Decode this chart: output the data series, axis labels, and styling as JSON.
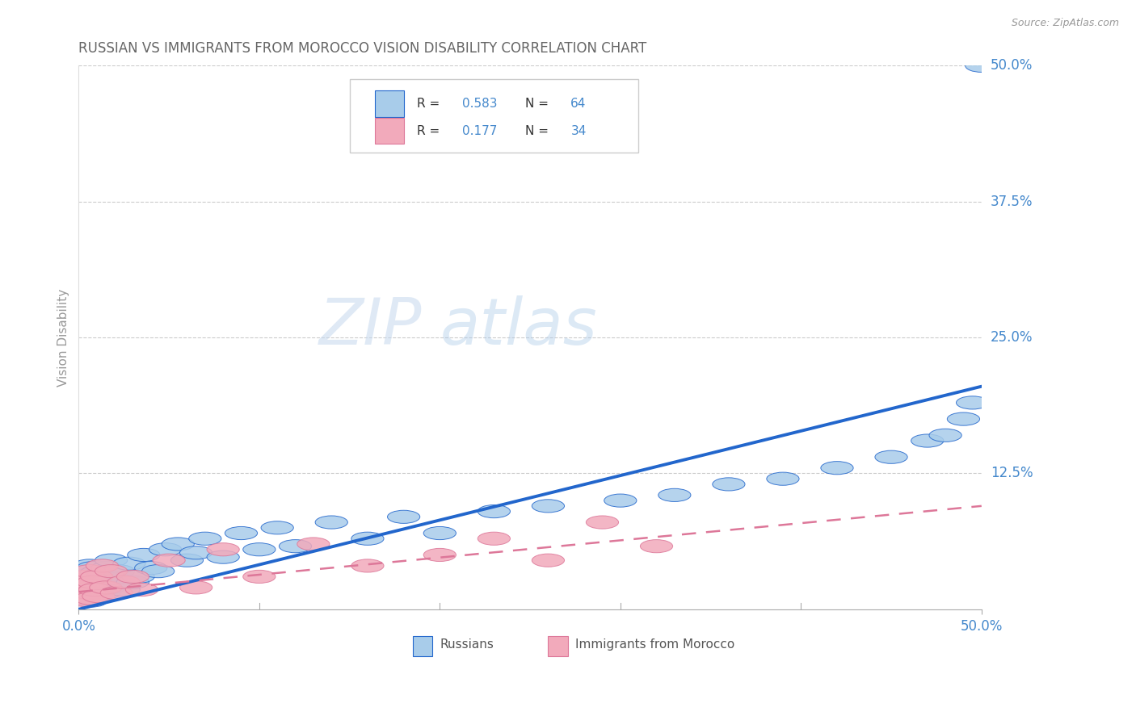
{
  "title": "RUSSIAN VS IMMIGRANTS FROM MOROCCO VISION DISABILITY CORRELATION CHART",
  "source": "Source: ZipAtlas.com",
  "ylabel": "Vision Disability",
  "xlim": [
    0.0,
    0.5
  ],
  "ylim": [
    0.0,
    0.5
  ],
  "ytick_labels": [
    "12.5%",
    "25.0%",
    "37.5%",
    "50.0%"
  ],
  "ytick_positions": [
    0.125,
    0.25,
    0.375,
    0.5
  ],
  "blue_color": "#A8CCEA",
  "pink_color": "#F2AABB",
  "blue_line_color": "#2266CC",
  "pink_line_color": "#DD7799",
  "grid_color": "#CCCCCC",
  "title_color": "#666666",
  "tick_label_color": "#4488CC",
  "source_color": "#999999",
  "ylabel_color": "#999999",
  "russians_x": [
    0.001,
    0.002,
    0.002,
    0.003,
    0.003,
    0.004,
    0.004,
    0.005,
    0.005,
    0.005,
    0.006,
    0.006,
    0.007,
    0.007,
    0.008,
    0.008,
    0.009,
    0.009,
    0.01,
    0.01,
    0.011,
    0.012,
    0.013,
    0.014,
    0.015,
    0.016,
    0.017,
    0.018,
    0.02,
    0.022,
    0.025,
    0.028,
    0.03,
    0.033,
    0.036,
    0.04,
    0.044,
    0.048,
    0.055,
    0.06,
    0.065,
    0.07,
    0.08,
    0.09,
    0.1,
    0.11,
    0.12,
    0.14,
    0.16,
    0.18,
    0.2,
    0.23,
    0.26,
    0.3,
    0.33,
    0.36,
    0.39,
    0.42,
    0.45,
    0.47,
    0.48,
    0.49,
    0.495,
    0.5
  ],
  "russians_y": [
    0.02,
    0.015,
    0.03,
    0.01,
    0.025,
    0.018,
    0.035,
    0.012,
    0.022,
    0.028,
    0.015,
    0.04,
    0.008,
    0.032,
    0.02,
    0.038,
    0.016,
    0.026,
    0.012,
    0.034,
    0.018,
    0.025,
    0.03,
    0.015,
    0.022,
    0.038,
    0.02,
    0.045,
    0.028,
    0.035,
    0.018,
    0.042,
    0.025,
    0.03,
    0.05,
    0.038,
    0.035,
    0.055,
    0.06,
    0.045,
    0.052,
    0.065,
    0.048,
    0.07,
    0.055,
    0.075,
    0.058,
    0.08,
    0.065,
    0.085,
    0.07,
    0.09,
    0.095,
    0.1,
    0.105,
    0.115,
    0.12,
    0.13,
    0.14,
    0.155,
    0.16,
    0.175,
    0.19,
    0.5
  ],
  "morocco_x": [
    0.001,
    0.002,
    0.002,
    0.003,
    0.003,
    0.004,
    0.004,
    0.005,
    0.005,
    0.006,
    0.006,
    0.007,
    0.008,
    0.009,
    0.01,
    0.011,
    0.013,
    0.015,
    0.018,
    0.021,
    0.025,
    0.03,
    0.035,
    0.05,
    0.065,
    0.08,
    0.1,
    0.13,
    0.16,
    0.2,
    0.23,
    0.26,
    0.29,
    0.32
  ],
  "morocco_y": [
    0.018,
    0.012,
    0.025,
    0.01,
    0.02,
    0.015,
    0.03,
    0.008,
    0.022,
    0.015,
    0.035,
    0.01,
    0.025,
    0.018,
    0.03,
    0.012,
    0.04,
    0.02,
    0.035,
    0.015,
    0.025,
    0.03,
    0.018,
    0.045,
    0.02,
    0.055,
    0.03,
    0.06,
    0.04,
    0.05,
    0.065,
    0.045,
    0.08,
    0.058
  ],
  "rus_line_x0": 0.0,
  "rus_line_y0": 0.0,
  "rus_line_x1": 0.5,
  "rus_line_y1": 0.205,
  "mor_line_x0": 0.0,
  "mor_line_y0": 0.016,
  "mor_line_x1": 0.5,
  "mor_line_y1": 0.095
}
